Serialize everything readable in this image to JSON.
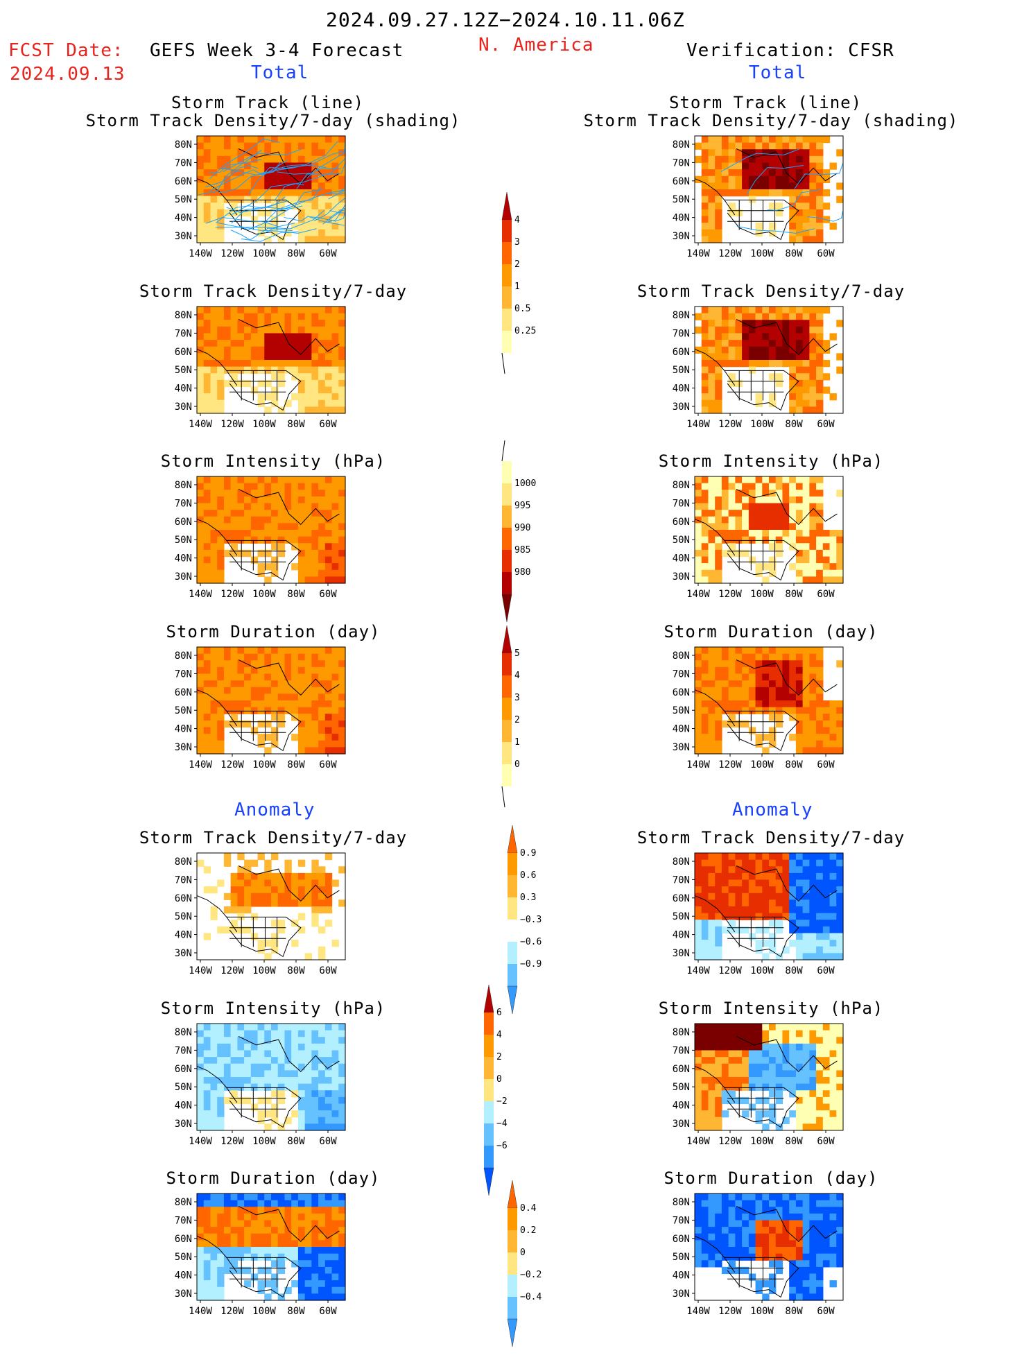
{
  "header": {
    "period": "2024.09.27.12Z−2024.10.11.06Z",
    "fcst_label": "FCST Date:",
    "fcst_date": "2024.09.13",
    "forecast_title": "GEFS Week 3-4 Forecast",
    "region": "N. America",
    "verification_title": "Verification: CFSR",
    "left_total": "Total",
    "right_total": "Total",
    "left_anomaly": "Anomaly",
    "right_anomaly": "Anomaly"
  },
  "axes": {
    "lat_labels": [
      "80N",
      "70N",
      "60N",
      "50N",
      "40N",
      "30N"
    ],
    "lon_labels": [
      "140W",
      "120W",
      "100W",
      "80W",
      "60W"
    ]
  },
  "panels": {
    "p1": {
      "title_line1": "Storm Track (line)",
      "title_line2": "Storm Track Density/7-day (shading)"
    },
    "p2": {
      "title": "Storm Track Density/7-day"
    },
    "p3": {
      "title": "Storm Intensity (hPa)"
    },
    "p4": {
      "title": "Storm Duration (day)"
    },
    "p5": {
      "title": "Storm Track Density/7-day"
    },
    "p6": {
      "title": "Storm Intensity (hPa)"
    },
    "p7": {
      "title": "Storm Duration (day)"
    }
  },
  "colorbars": {
    "density": {
      "labels": [
        "4",
        "3",
        "2",
        "1",
        "0.5",
        "0.25"
      ]
    },
    "intensity": {
      "labels": [
        "1000",
        "995",
        "990",
        "985",
        "980"
      ]
    },
    "duration": {
      "labels": [
        "5",
        "4",
        "3",
        "2",
        "1",
        "0"
      ]
    },
    "density_anom": {
      "labels": [
        "0.9",
        "0.6",
        "0.3",
        "−0.3",
        "−0.6",
        "−0.9"
      ]
    },
    "intensity_anom": {
      "labels": [
        "6",
        "4",
        "2",
        "0",
        "−2",
        "−4",
        "−6"
      ]
    },
    "duration_anom": {
      "labels": [
        "0.4",
        "0.2",
        "0",
        "−0.2",
        "−0.4"
      ]
    }
  },
  "colors": {
    "c1": "#ffffb3",
    "c2": "#ffe680",
    "c3": "#ffb733",
    "c4": "#ff9900",
    "c5": "#ff6600",
    "c6": "#e62e00",
    "c7": "#b30000",
    "c8": "#7a0000",
    "a1": "#b3f0ff",
    "a2": "#66c2ff",
    "a3": "#3399ff",
    "a4": "#0055ff",
    "track": "#1aa3ff"
  }
}
